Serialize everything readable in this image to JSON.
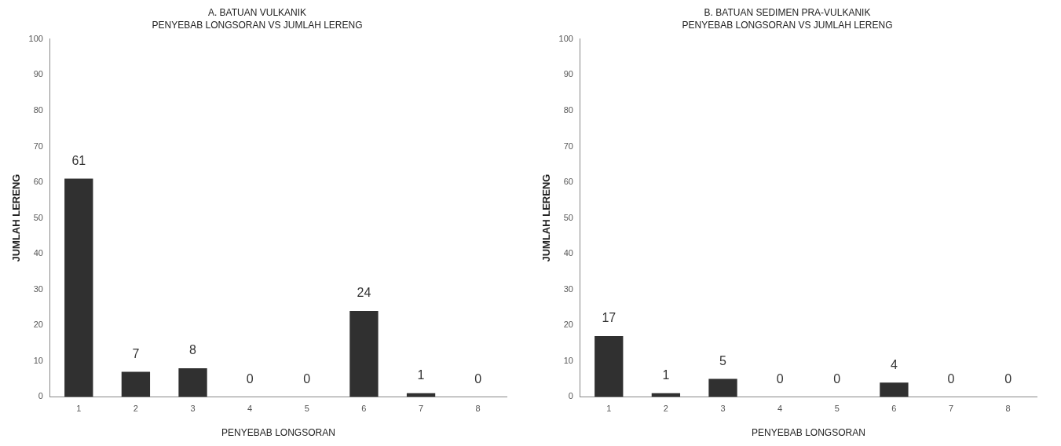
{
  "chart_data": [
    {
      "type": "bar",
      "title": "A. BATUAN VULKANIK",
      "subtitle": "PENYEBAB LONGSORAN VS JUMLAH LERENG",
      "xlabel": "PENYEBAB LONGSORAN",
      "ylabel": "JUMLAH LERENG",
      "categories": [
        "1",
        "2",
        "3",
        "4",
        "5",
        "6",
        "7",
        "8"
      ],
      "values": [
        61,
        7,
        8,
        0,
        0,
        24,
        1,
        0
      ],
      "color": "#303030",
      "ylim": [
        0,
        100
      ],
      "yticks": [
        0,
        10,
        20,
        30,
        40,
        50,
        60,
        70,
        80,
        90,
        100
      ],
      "grid": false,
      "data_labels": true
    },
    {
      "type": "bar",
      "title": "B. BATUAN SEDIMEN PRA-VULKANIK",
      "subtitle": "PENYEBAB LONGSORAN VS JUMLAH LERENG",
      "xlabel": "PENYEBAB LONGSORAN",
      "ylabel": "JUMLAH LERENG",
      "categories": [
        "1",
        "2",
        "3",
        "4",
        "5",
        "6",
        "7",
        "8"
      ],
      "values": [
        17,
        1,
        5,
        0,
        0,
        4,
        0,
        0
      ],
      "color": "#303030",
      "ylim": [
        0,
        100
      ],
      "yticks": [
        0,
        10,
        20,
        30,
        40,
        50,
        60,
        70,
        80,
        90,
        100
      ],
      "grid": false,
      "data_labels": true
    }
  ]
}
